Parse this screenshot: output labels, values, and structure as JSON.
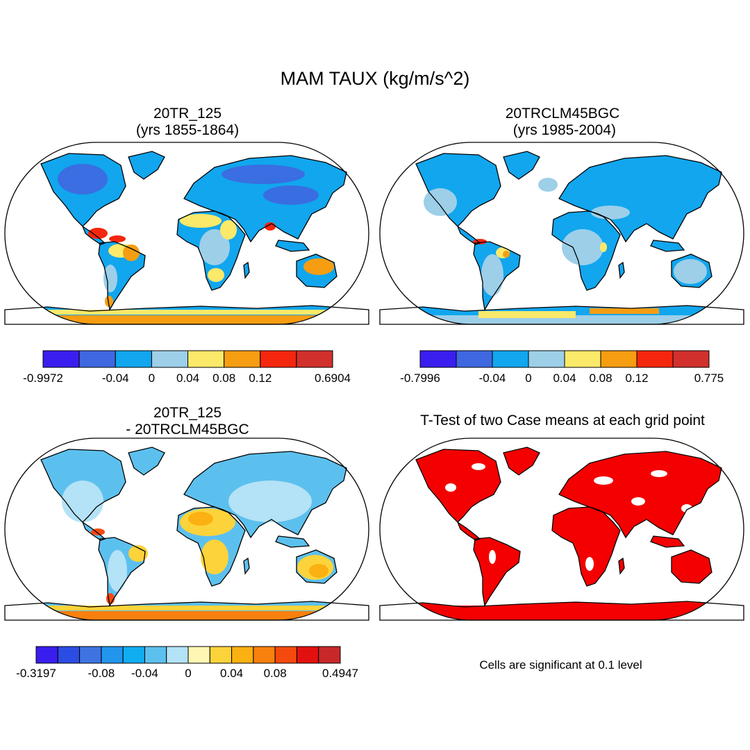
{
  "figure_title": "MAM TAUX (kg/m/s^2)",
  "panels": {
    "p1": {
      "title_line1": "20TR_125",
      "title_line2": "(yrs 1855-1864)"
    },
    "p2": {
      "title_line1": "20TRCLM45BGC",
      "title_line2": " (yrs 1985-2004)"
    },
    "p3": {
      "title_line1": "20TR_125",
      "title_line2": "- 20TRCLM45BGC"
    },
    "p4": {
      "title_line1": "T-Test of two Case means at each grid point",
      "note": "Cells are significant at 0.1 level"
    }
  },
  "colorbars": [
    {
      "panel": "p1",
      "colors": [
        "#3a1ef0",
        "#3f68e0",
        "#11a6ee",
        "#9dcfe9",
        "#fbe96a",
        "#f69d12",
        "#f4260e",
        "#d1302c"
      ],
      "labels": [
        "-0.9972",
        "-0.04",
        "0",
        "0.04",
        "0.08",
        "0.12",
        "0.6904"
      ]
    },
    {
      "panel": "p2",
      "colors": [
        "#3a1ef0",
        "#3f68e0",
        "#11a6ee",
        "#9dcfe9",
        "#fbe96a",
        "#f69d12",
        "#f4260e",
        "#d1302c"
      ],
      "labels": [
        "-0.7996",
        "-0.04",
        "0",
        "0.04",
        "0.08",
        "0.12",
        "0.775"
      ]
    },
    {
      "panel": "p3",
      "colors": [
        "#3a1ef0",
        "#2b4de3",
        "#3f73e2",
        "#2196ec",
        "#10aef0",
        "#5cc0ee",
        "#b4e2f6",
        "#fff7b3",
        "#fdd33b",
        "#fbb111",
        "#f8800e",
        "#f5490d",
        "#e2110f",
        "#c9282a"
      ],
      "labels": [
        "-0.3197",
        "-0.08",
        "-0.04",
        "0",
        "0.04",
        "0.08",
        "0.4947"
      ]
    }
  ],
  "map_colors": {
    "land_blue": "#11a6ee",
    "land_light_blue": "#9dcfe9",
    "land_dark_blue": "#3f68e0",
    "land_yellow": "#fbe96a",
    "land_orange": "#f69d12",
    "land_red": "#f4260e",
    "significant_red": "#f40000"
  }
}
